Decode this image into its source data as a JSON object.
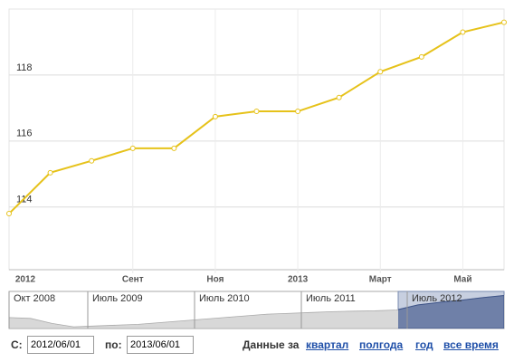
{
  "chart_data": {
    "type": "line",
    "categories": [
      "2012",
      null,
      null,
      "Сент",
      null,
      "Ноя",
      null,
      "2013",
      null,
      "Март",
      null,
      "Май",
      null
    ],
    "series": [
      {
        "color": "#e6c21a",
        "values": [
          113.8,
          115.04,
          115.4,
          115.78,
          115.78,
          116.74,
          116.9,
          116.9,
          117.32,
          118.1,
          118.55,
          119.3,
          119.6
        ]
      }
    ],
    "ylim": [
      112.1,
      120
    ],
    "yticks": [
      114,
      116,
      118
    ],
    "grid": true
  },
  "navigator": {
    "labels": [
      "Окт 2008",
      "Июль 2009",
      "Июль 2010",
      "Июль 2011",
      "Июль 2012"
    ],
    "values": [
      106.5,
      106,
      103,
      101,
      101.5,
      102,
      102.5,
      103.5,
      104.5,
      105.5,
      106.5,
      107.5,
      108.5,
      109,
      109.5,
      110,
      110.3,
      110.5,
      111,
      114,
      115.5,
      116.8,
      118.3,
      119.6
    ],
    "ylim": [
      100,
      122
    ]
  },
  "controls": {
    "from_label": "С:",
    "from_value": "2012/06/01",
    "to_label": "по:",
    "to_value": "2013/06/01",
    "range_label": "Данные за",
    "links": [
      "квартал",
      "полгода",
      "год",
      "все время"
    ]
  }
}
